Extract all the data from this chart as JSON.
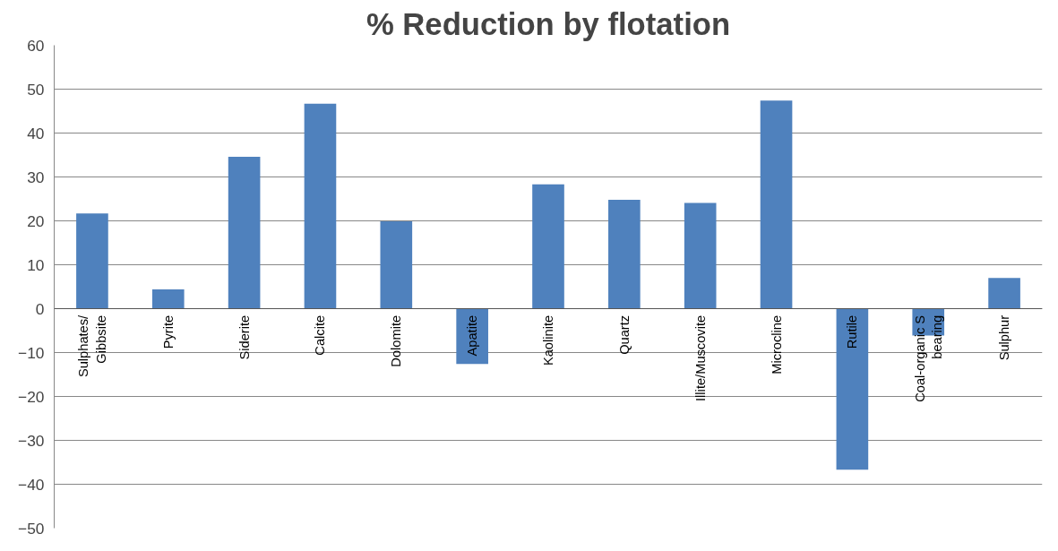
{
  "chart_data": {
    "type": "bar",
    "title": "% Reduction by flotation",
    "categories": [
      "Sulphates/ Gibbsite",
      "Pyrite",
      "Siderite",
      "Calcite",
      "Dolomite",
      "Apatite",
      "Kaolinite",
      "Quartz",
      "Illite/Muscovite",
      "Microcline",
      "Rutile",
      "Coal-organic S bearing",
      "Sulphur"
    ],
    "values": [
      21.7,
      4.4,
      34.6,
      46.7,
      19.9,
      -12.6,
      28.3,
      24.8,
      24.1,
      47.4,
      -36.7,
      -6.1,
      7.0
    ],
    "color": "#4f81bd",
    "ylim": [
      -50,
      60
    ],
    "yticks": [
      -50,
      -40,
      -30,
      -20,
      -10,
      0,
      10,
      20,
      30,
      40,
      50,
      60
    ],
    "grid": "y"
  }
}
